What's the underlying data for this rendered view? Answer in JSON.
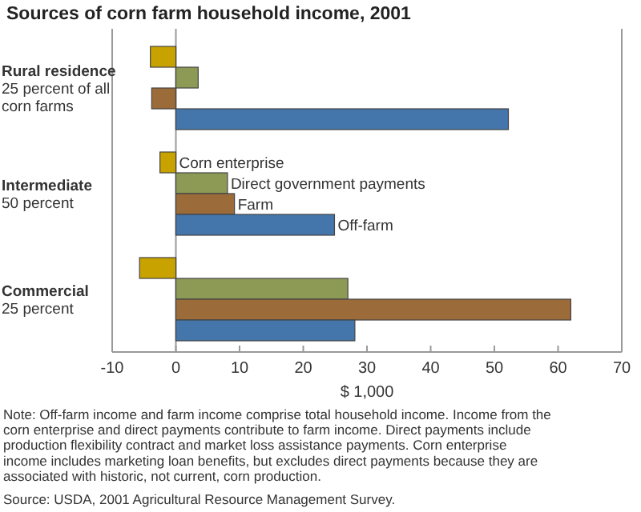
{
  "chart_data": {
    "type": "bar",
    "orientation": "horizontal",
    "title": "Sources of corn farm household income, 2001",
    "categories": [
      "Rural residence\n25 percent of all\ncorn farms",
      "Intermediate\n50 percent",
      "Commercial\n25 percent"
    ],
    "series": [
      {
        "name": "Corn enterprise",
        "color": "#c8a300",
        "values": [
          -4,
          -2.5,
          -5.7
        ]
      },
      {
        "name": "Direct government payments",
        "color": "#8c9a56",
        "values": [
          3.5,
          8.1,
          27
        ]
      },
      {
        "name": "Farm",
        "color": "#9b6b3a",
        "values": [
          -3.8,
          9.2,
          62
        ]
      },
      {
        "name": "Off-farm",
        "color": "#4475ab",
        "values": [
          52.2,
          24.9,
          28.1
        ]
      }
    ],
    "xlim": [
      -10,
      70
    ],
    "xticks": [
      -10,
      0,
      10,
      20,
      30,
      40,
      50,
      60,
      70
    ],
    "xlabel": "$ 1,000",
    "annotations": [
      "Note: Off-farm income and farm income comprise total household income. Income from the corn enterprise and direct payments contribute to farm income. Direct payments include production flexibility contract and market loss assistance payments. Corn enterprise income includes marketing loan benefits, but excludes direct payments because they are associated with historic, not current, corn production.",
      "Source: USDA, 2001 Agricultural Resource Management Survey."
    ]
  }
}
